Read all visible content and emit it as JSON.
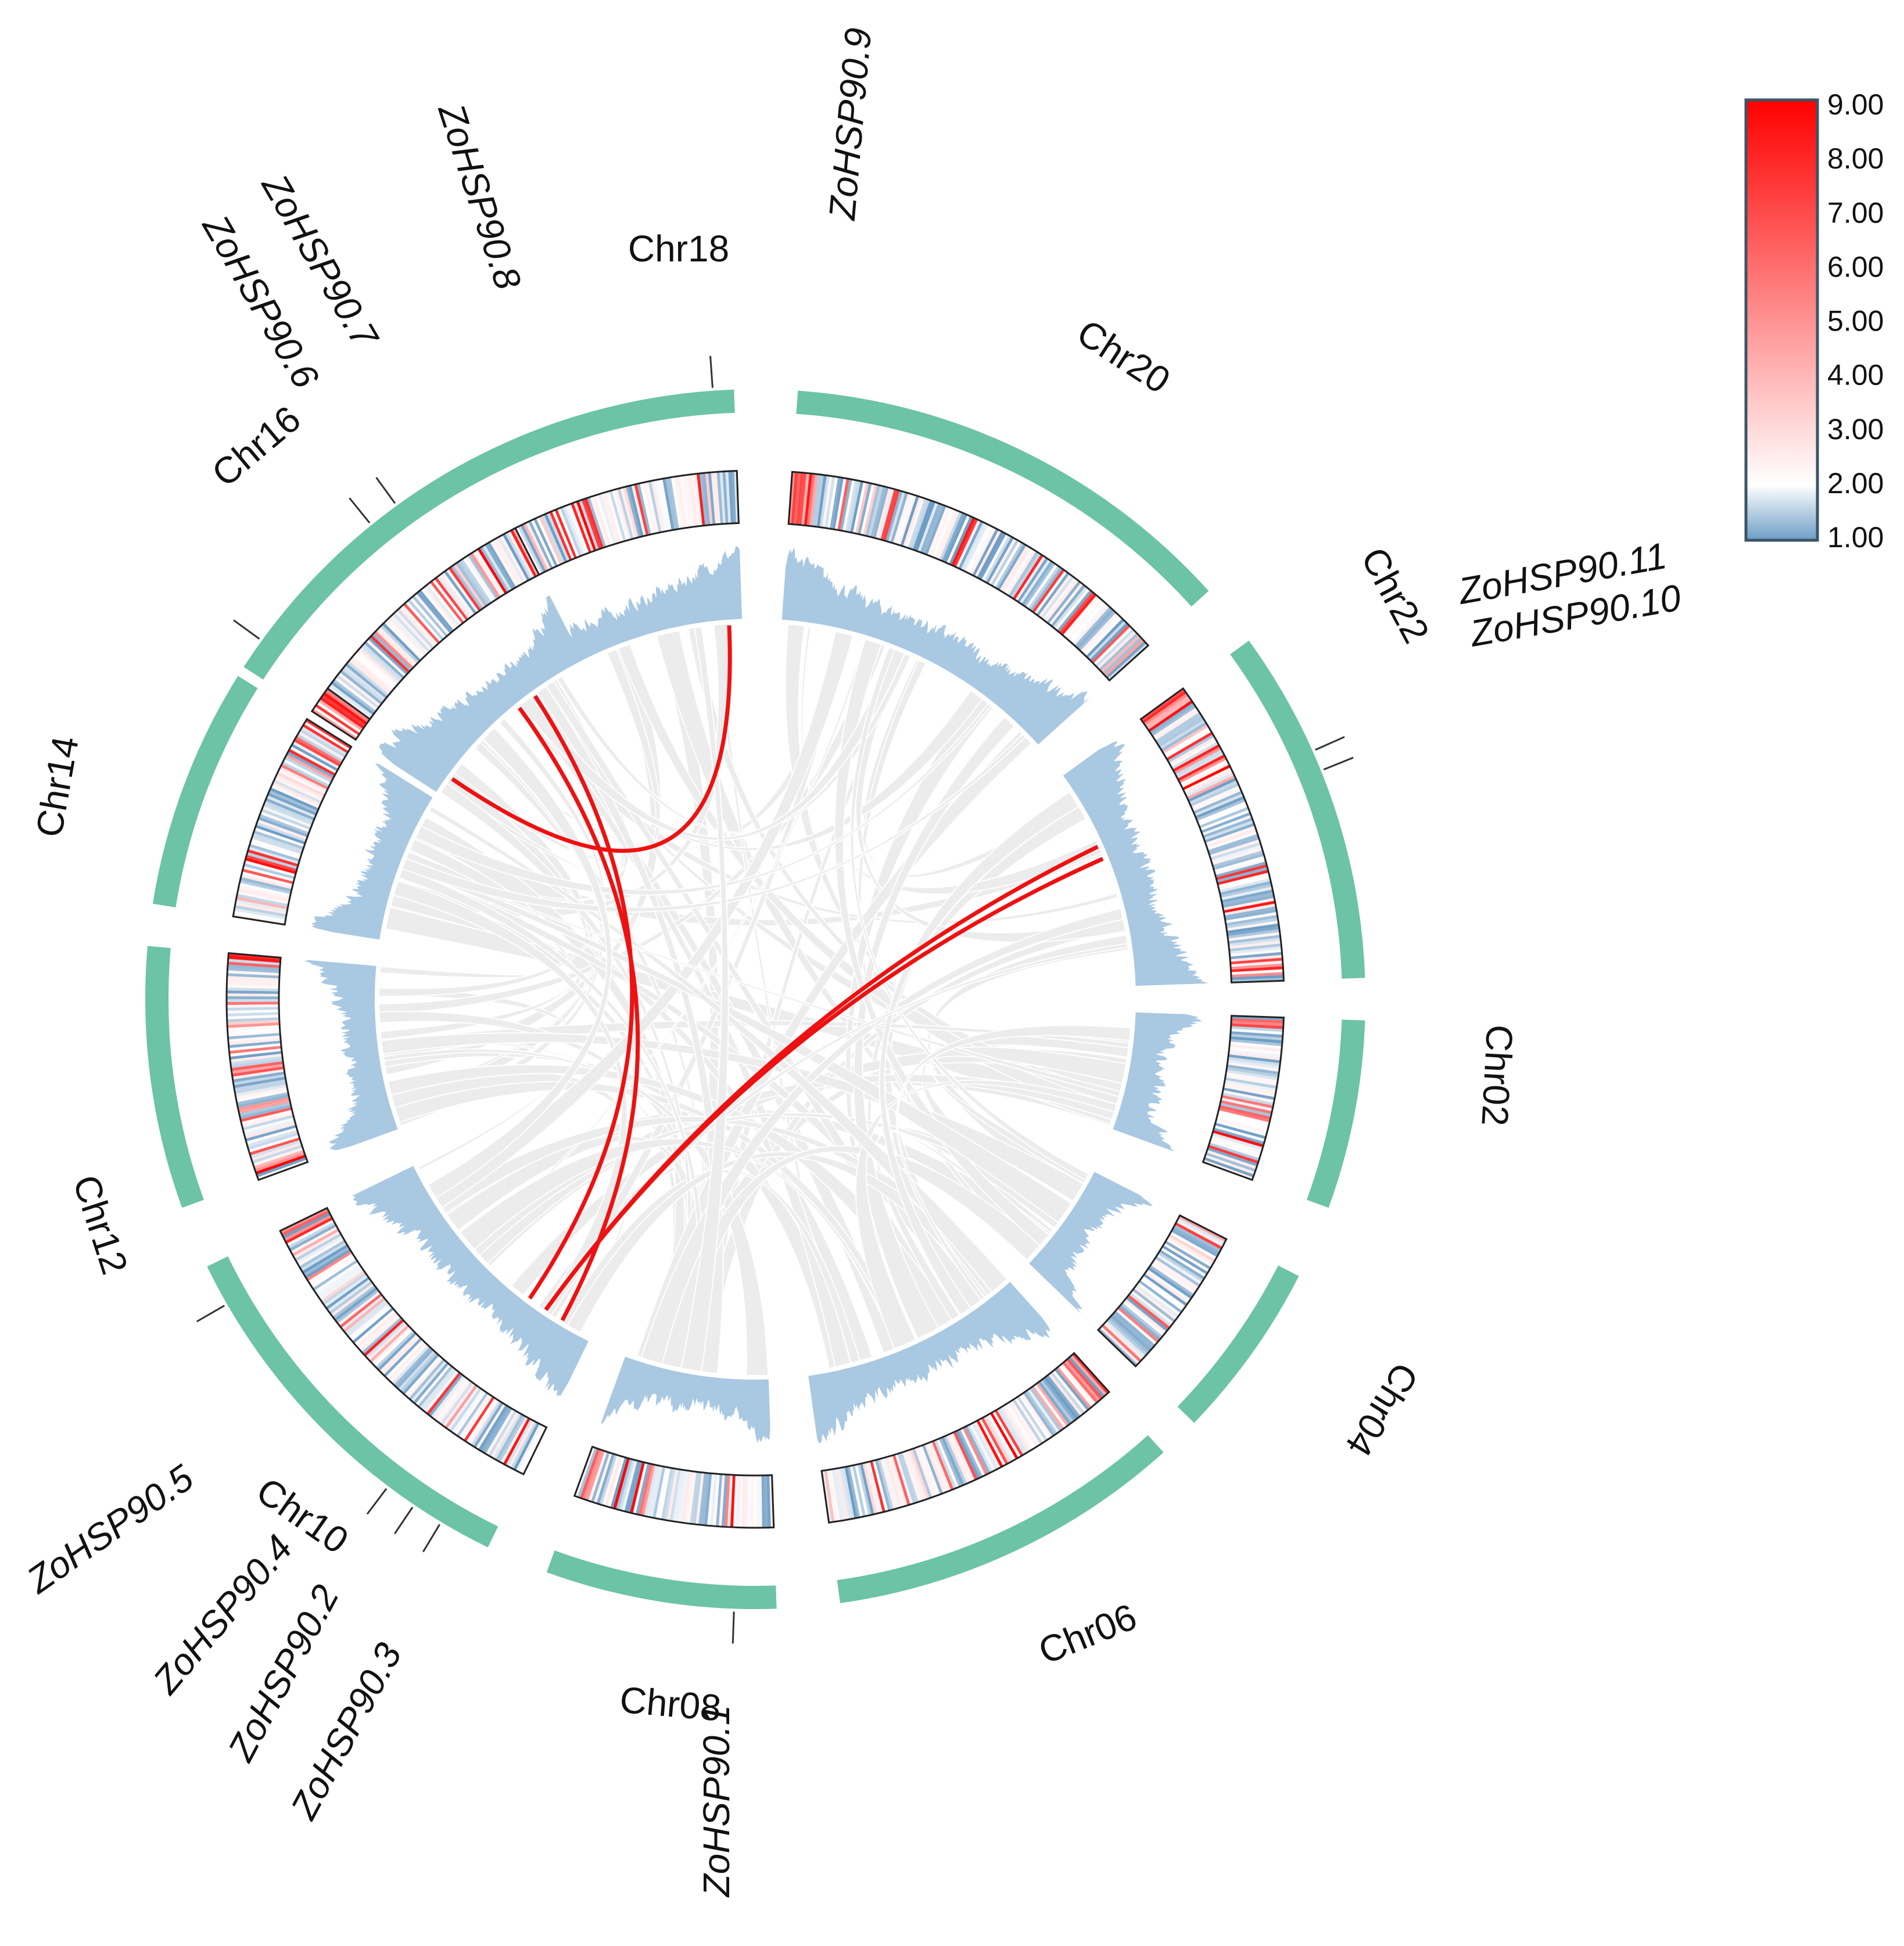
{
  "figure": {
    "type": "circos",
    "description_labels": true
  },
  "colors": {
    "chromosome_band": "#6cc3a5",
    "histogram": "#a9c8e2",
    "ribbon": "#ececec",
    "highlight_link": "#ee1111",
    "heat_low": "#6d9dc5",
    "heat_mid": "#ffffff",
    "heat_high": "#ff0000",
    "heat_frame": "#222222"
  },
  "chromosomes": [
    {
      "name": "Chr18",
      "dir": 1
    },
    {
      "name": "Chr20",
      "dir": 1
    },
    {
      "name": "Chr22",
      "dir": 1
    },
    {
      "name": "Chr02",
      "dir": 1
    },
    {
      "name": "Chr04",
      "dir": 1
    },
    {
      "name": "Chr06",
      "dir": 1
    },
    {
      "name": "Chr08",
      "dir": -1
    },
    {
      "name": "Chr10",
      "dir": -1
    },
    {
      "name": "Chr12",
      "dir": -1
    },
    {
      "name": "Chr14",
      "dir": -1
    },
    {
      "name": "Chr16",
      "dir": -1
    }
  ],
  "genes": [
    {
      "name": "ZoHSP90.1",
      "chr": "Chr08"
    },
    {
      "name": "ZoHSP90.2",
      "chr": "Chr10"
    },
    {
      "name": "ZoHSP90.3",
      "chr": "Chr10"
    },
    {
      "name": "ZoHSP90.4",
      "chr": "Chr10"
    },
    {
      "name": "ZoHSP90.5",
      "chr": "Chr10"
    },
    {
      "name": "ZoHSP90.6",
      "chr": "Chr16"
    },
    {
      "name": "ZoHSP90.7",
      "chr": "Chr16"
    },
    {
      "name": "ZoHSP90.8",
      "chr": "Chr18"
    },
    {
      "name": "ZoHSP90.9",
      "chr": "Chr18"
    },
    {
      "name": "ZoHSP90.10",
      "chr": "Chr22"
    },
    {
      "name": "ZoHSP90.11",
      "chr": "Chr22"
    }
  ],
  "duplicated_pairs": [
    {
      "from": "ZoHSP90.8",
      "to": "ZoHSP90.9"
    },
    {
      "from": "ZoHSP90.7",
      "to": "ZoHSP90.4"
    },
    {
      "from": "ZoHSP90.6",
      "to": "ZoHSP90.3"
    },
    {
      "from": "ZoHSP90.10",
      "to": "ZoHSP90.2"
    },
    {
      "from": "ZoHSP90.11",
      "to": "ZoHSP90.2"
    }
  ],
  "legend": {
    "ticks": [
      "9.00",
      "8.00",
      "7.00",
      "6.00",
      "5.00",
      "4.00",
      "3.00",
      "2.00",
      "1.00"
    ],
    "min": 1.0,
    "max": 9.0
  }
}
